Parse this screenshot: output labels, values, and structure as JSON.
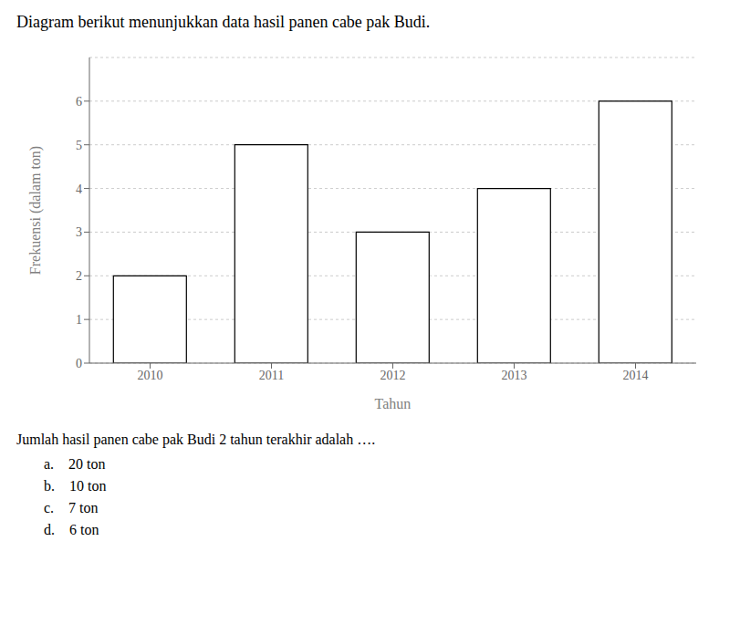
{
  "chart_data": {
    "type": "bar",
    "title": "Diagram berikut menunjukkan data hasil panen cabe pak Budi.",
    "xlabel": "Tahun",
    "ylabel": "Frekuensi (dalam ton)",
    "categories": [
      "2010",
      "2011",
      "2012",
      "2013",
      "2014"
    ],
    "values": [
      2,
      5,
      3,
      4,
      6
    ],
    "color": "#ffffff",
    "ylim": [
      0,
      7
    ],
    "yticks": [
      0,
      1,
      2,
      3,
      4,
      5,
      6
    ],
    "grid": true,
    "annotations": [
      "Jumlah hasil panen cabe pak Budi 2 tahun terakhir adalah ….",
      "a.    20 ton",
      "b.    10 ton",
      "c.    7 ton",
      "d.    6 ton"
    ]
  }
}
